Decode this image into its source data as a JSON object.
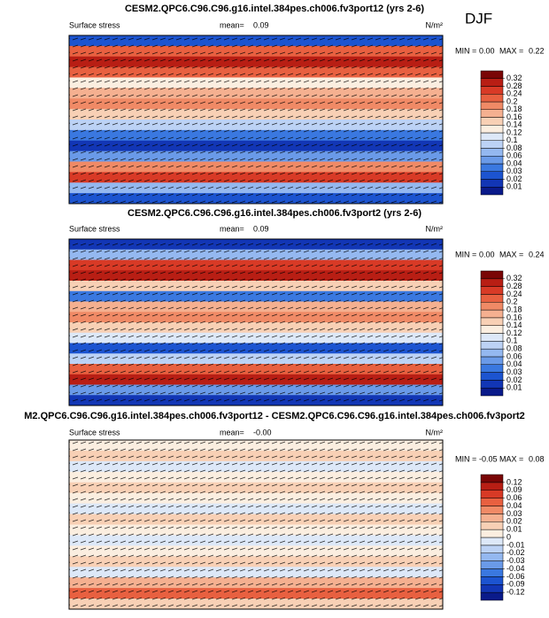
{
  "season": "DJF",
  "chart_data": [
    {
      "type": "map",
      "title": "CESM2.QPC6.C96.C96.g16.intel.384pes.ch006.fv3port12 (yrs 2-6)",
      "variable": "Surface stress",
      "mean_label": "mean=",
      "mean": 0.09,
      "units": "N/m²",
      "min_label": "MIN =",
      "min": {
        "value": 0,
        "label": "0.00"
      },
      "max_label": "MAX =",
      "max": 0.22,
      "levels": [
        0.01,
        0.02,
        0.03,
        0.04,
        0.06,
        0.08,
        0.1,
        0.12,
        0.14,
        0.16,
        0.18,
        0.2,
        0.24,
        0.28,
        0.32
      ],
      "colors": [
        "#0a1a8a",
        "#1236b5",
        "#1c54d0",
        "#3a78e0",
        "#6a9ae8",
        "#94b8f0",
        "#bcd2f5",
        "#dde8f8",
        "#fbeee0",
        "#f8d0b5",
        "#f5b090",
        "#f08a66",
        "#e86040",
        "#d83a26",
        "#b81e14",
        "#7a0606"
      ]
    },
    {
      "type": "map",
      "title": "CESM2.QPC6.C96.C96.g16.intel.384pes.ch006.fv3port2 (yrs 2-6)",
      "variable": "Surface stress",
      "mean_label": "mean=",
      "mean": 0.09,
      "units": "N/m²",
      "min_label": "MIN =",
      "min": {
        "value": 0,
        "label": "0.00"
      },
      "max_label": "MAX =",
      "max": 0.24,
      "levels": [
        0.01,
        0.02,
        0.03,
        0.04,
        0.06,
        0.08,
        0.1,
        0.12,
        0.14,
        0.16,
        0.18,
        0.2,
        0.24,
        0.28,
        0.32
      ],
      "colors": [
        "#0a1a8a",
        "#1236b5",
        "#1c54d0",
        "#3a78e0",
        "#6a9ae8",
        "#94b8f0",
        "#bcd2f5",
        "#dde8f8",
        "#fbeee0",
        "#f8d0b5",
        "#f5b090",
        "#f08a66",
        "#e86040",
        "#d83a26",
        "#b81e14",
        "#7a0606"
      ]
    },
    {
      "type": "map",
      "title": "M2.QPC6.C96.C96.g16.intel.384pes.ch006.fv3port12 - CESM2.QPC6.C96.C96.g16.intel.384pes.ch006.fv3port2",
      "variable": "Surface stress",
      "mean_label": "mean=",
      "mean": {
        "value": 0,
        "label": "-0.00"
      },
      "units": "N/m²",
      "min_label": "MIN =",
      "min": -0.05,
      "max_label": "MAX =",
      "max": 0.08,
      "levels": [
        -0.12,
        -0.09,
        -0.06,
        -0.04,
        -0.03,
        -0.02,
        -0.01,
        0,
        0.01,
        0.02,
        0.03,
        0.04,
        0.06,
        0.09,
        0.12
      ],
      "colors": [
        "#0a1a8a",
        "#1236b5",
        "#1c54d0",
        "#3a78e0",
        "#6a9ae8",
        "#94b8f0",
        "#bcd2f5",
        "#dde8f8",
        "#fbeee0",
        "#f8d0b5",
        "#f5b090",
        "#f08a66",
        "#e86040",
        "#d83a26",
        "#b81e14",
        "#7a0606"
      ]
    }
  ]
}
